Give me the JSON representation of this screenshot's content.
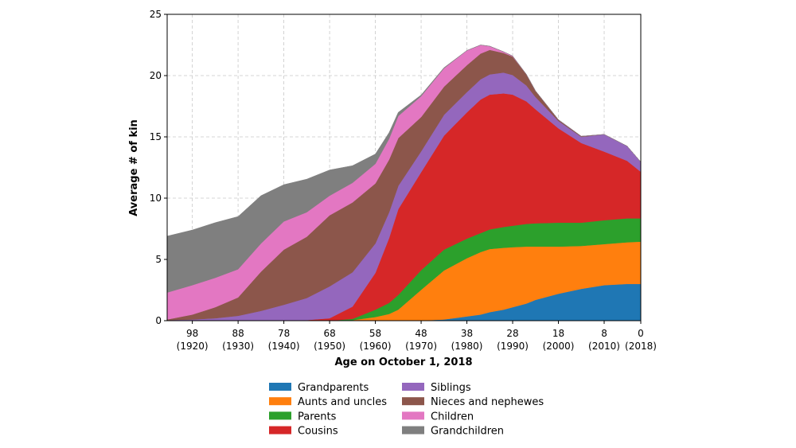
{
  "chart_data": {
    "type": "area",
    "stacked": true,
    "xlabel": "Age on October 1, 2018",
    "ylabel": "Average # of kin",
    "xlim": [
      103.5,
      0
    ],
    "ylim": [
      0,
      25
    ],
    "yticks": [
      "0",
      "5",
      "10",
      "15",
      "20",
      "25"
    ],
    "xticks": [
      {
        "value": 98,
        "label": "98",
        "sublabel": "(1920)"
      },
      {
        "value": 88,
        "label": "88",
        "sublabel": "(1930)"
      },
      {
        "value": 78,
        "label": "78",
        "sublabel": "(1940)"
      },
      {
        "value": 68,
        "label": "68",
        "sublabel": "(1950)"
      },
      {
        "value": 58,
        "label": "58",
        "sublabel": "(1960)"
      },
      {
        "value": 48,
        "label": "48",
        "sublabel": "(1970)"
      },
      {
        "value": 38,
        "label": "38",
        "sublabel": "(1980)"
      },
      {
        "value": 28,
        "label": "28",
        "sublabel": "(1990)"
      },
      {
        "value": 18,
        "label": "18",
        "sublabel": "(2000)"
      },
      {
        "value": 8,
        "label": "8",
        "sublabel": "(2010)"
      },
      {
        "value": 0,
        "label": "0",
        "sublabel": "(2018)"
      }
    ],
    "grid": true,
    "legend_position": "bottom-center",
    "x": [
      103.5,
      98,
      93,
      88,
      83,
      78,
      73,
      68,
      63,
      58,
      55,
      53,
      48,
      43,
      38,
      35,
      33,
      30,
      28,
      25,
      23,
      18,
      13,
      8,
      3,
      0
    ],
    "series": [
      {
        "name": "Grandparents",
        "color": "#1f77b4",
        "values": [
          0,
          0,
          0,
          0,
          0,
          0,
          0,
          0,
          0,
          0,
          0,
          0,
          0.02,
          0.1,
          0.35,
          0.5,
          0.7,
          0.9,
          1.1,
          1.4,
          1.7,
          2.2,
          2.6,
          2.9,
          3.0,
          3.0
        ]
      },
      {
        "name": "Aunts and uncles",
        "color": "#ff7f0e",
        "values": [
          0,
          0,
          0,
          0,
          0,
          0,
          0,
          0,
          0.05,
          0.3,
          0.55,
          0.9,
          2.5,
          4.0,
          4.75,
          5.1,
          5.15,
          5.05,
          4.9,
          4.65,
          4.35,
          3.85,
          3.5,
          3.35,
          3.4,
          3.45
        ]
      },
      {
        "name": "Parents",
        "color": "#2ca02c",
        "values": [
          0,
          0,
          0,
          0,
          0,
          0,
          0,
          0,
          0.1,
          0.6,
          0.9,
          1.2,
          1.6,
          1.7,
          1.6,
          1.55,
          1.6,
          1.7,
          1.75,
          1.85,
          1.9,
          1.95,
          1.9,
          1.95,
          1.95,
          1.9
        ]
      },
      {
        "name": "Cousins",
        "color": "#d62728",
        "values": [
          0,
          0,
          0,
          0,
          0,
          0,
          0.05,
          0.2,
          1.0,
          3.0,
          5.3,
          7.0,
          8.0,
          9.3,
          10.3,
          10.9,
          11.0,
          10.9,
          10.7,
          10.0,
          9.3,
          7.7,
          6.5,
          5.6,
          4.7,
          3.8
        ]
      },
      {
        "name": "Siblings",
        "color": "#9467bd",
        "values": [
          0.05,
          0.1,
          0.2,
          0.4,
          0.8,
          1.3,
          1.8,
          2.6,
          2.8,
          2.4,
          2.1,
          1.9,
          1.7,
          1.7,
          1.65,
          1.65,
          1.65,
          1.7,
          1.6,
          1.3,
          1.0,
          0.6,
          0.5,
          1.4,
          1.2,
          0.8
        ]
      },
      {
        "name": "Nieces and nephewes",
        "color": "#8c564b",
        "values": [
          0.05,
          0.4,
          0.9,
          1.5,
          3.2,
          4.5,
          5.0,
          5.8,
          5.7,
          4.9,
          4.3,
          3.9,
          2.8,
          2.3,
          2.2,
          2.1,
          2.0,
          1.6,
          1.5,
          0.9,
          0.5,
          0.1,
          0.05,
          0,
          0,
          0
        ]
      },
      {
        "name": "Children",
        "color": "#e377c2",
        "values": [
          2.2,
          2.4,
          2.4,
          2.3,
          2.3,
          2.3,
          2.0,
          1.6,
          1.6,
          1.6,
          1.7,
          1.8,
          1.7,
          1.5,
          1.2,
          0.7,
          0.3,
          0.1,
          0.05,
          0,
          0,
          0,
          0,
          0,
          0,
          0
        ]
      },
      {
        "name": "Grandchildren",
        "color": "#7f7f7f",
        "values": [
          4.6,
          4.5,
          4.5,
          4.3,
          3.9,
          3.0,
          2.7,
          2.1,
          1.4,
          0.8,
          0.5,
          0.3,
          0.1,
          0.05,
          0,
          0,
          0,
          0,
          0,
          0,
          0,
          0,
          0,
          0,
          0,
          0
        ]
      }
    ]
  }
}
